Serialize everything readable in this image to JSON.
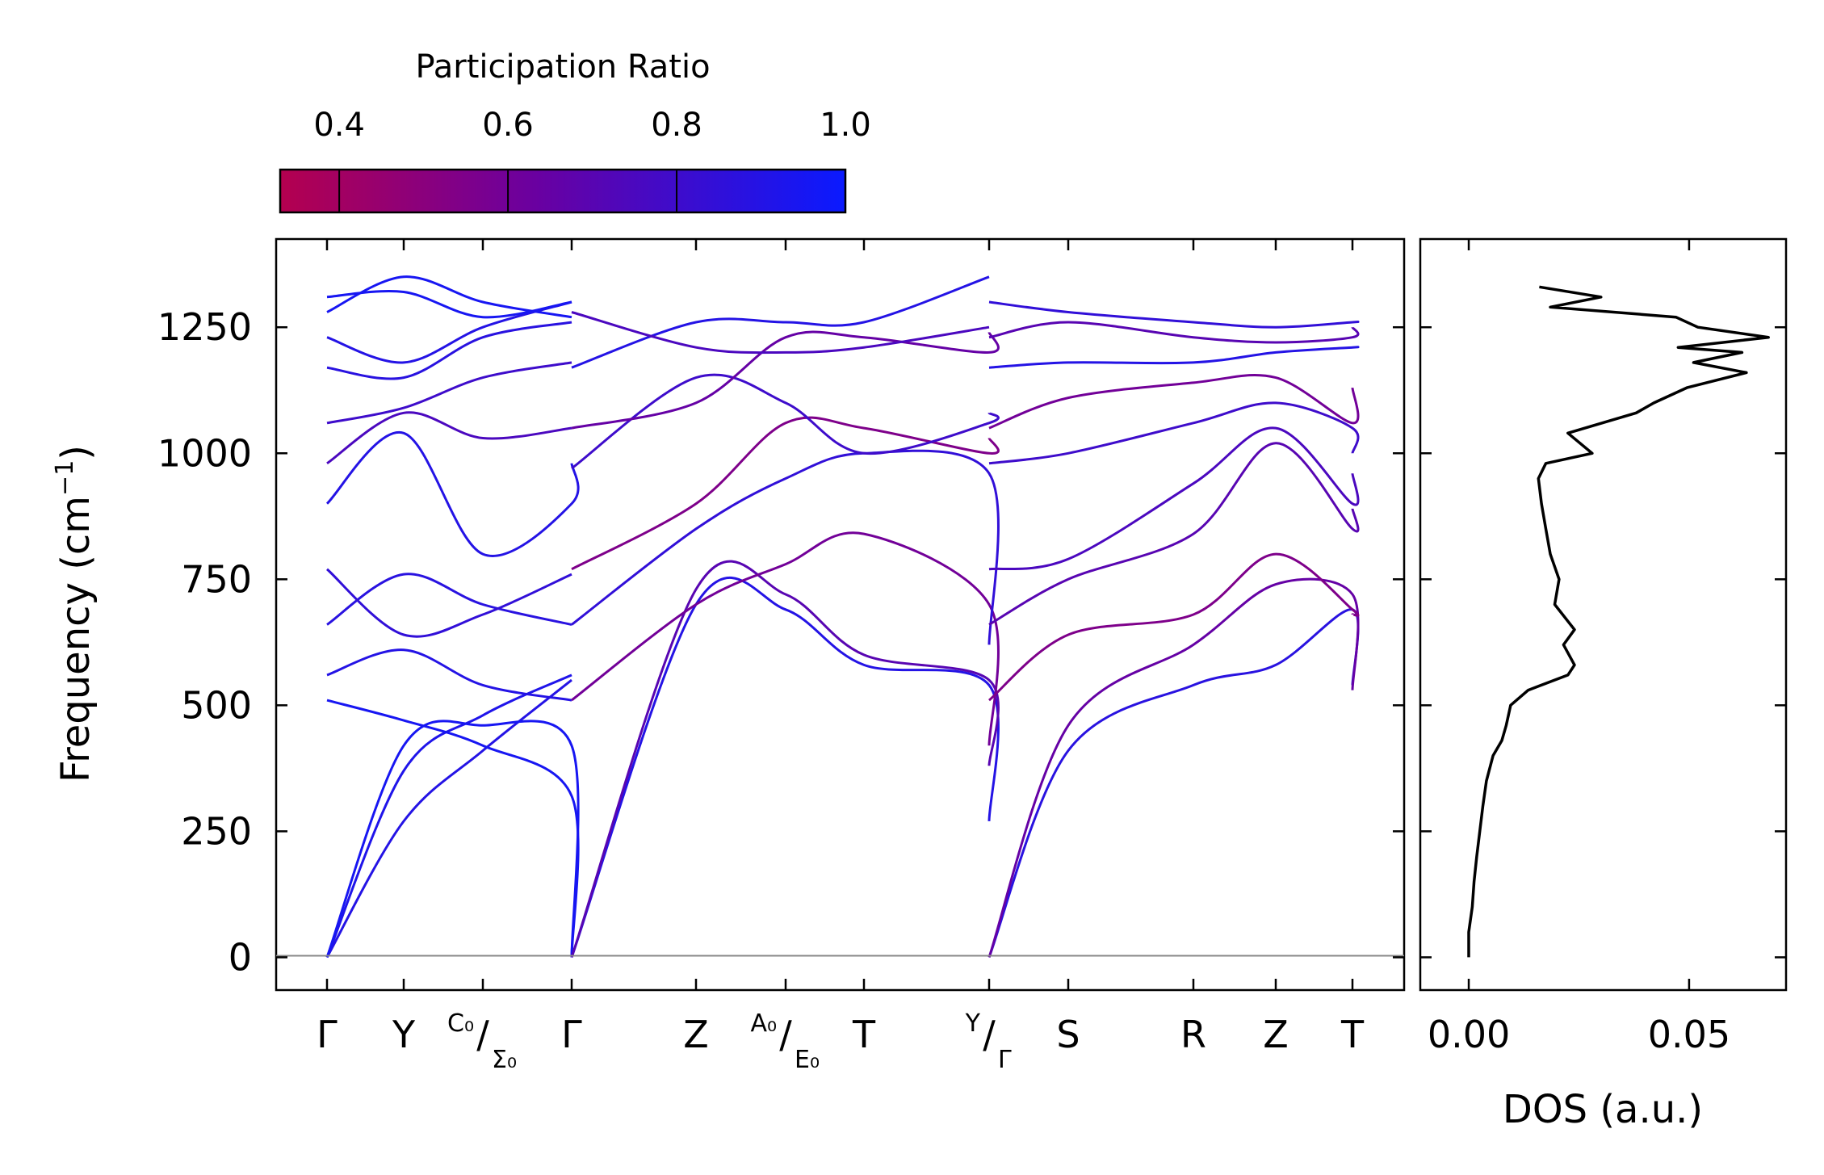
{
  "chart_data": {
    "type": "line",
    "title": "",
    "ylabel": "Frequency (cm⁻¹)",
    "ylabel_text": "Frequency (cm",
    "ylabel_sup": "−1",
    "ylabel_close": ")",
    "ylim": [
      -65,
      1425
    ],
    "yticks": [
      0,
      250,
      500,
      750,
      1000,
      1250
    ],
    "colorbar": {
      "title": "Participation Ratio",
      "range": [
        0.33,
        1.0
      ],
      "ticks": [
        0.4,
        0.6,
        0.8,
        1.0
      ],
      "tick_labels": [
        "0.4",
        "0.6",
        "0.8",
        "1.0"
      ],
      "low_color": "#b4004f",
      "mid_color": "#6a00a0",
      "high_color": "#0a1aff"
    },
    "kpath_labels": [
      {
        "main": "Γ"
      },
      {
        "main": "Y"
      },
      {
        "pre": "C₀",
        "slash": "/",
        "post": "Σ₀"
      },
      {
        "main": "Γ"
      },
      {
        "main": "Z"
      },
      {
        "pre": "A₀",
        "slash": "/",
        "post": "E₀"
      },
      {
        "main": "T"
      },
      {
        "pre": "Y",
        "slash": "/",
        "post": "Γ"
      },
      {
        "main": "S"
      },
      {
        "main": "R"
      },
      {
        "main": "Z"
      },
      {
        "main": "T"
      }
    ],
    "series": [
      {
        "segment": 1,
        "values": [
          0,
          270,
          410,
          550
        ],
        "pr": 0.9
      },
      {
        "segment": 1,
        "values": [
          0,
          370,
          480,
          560
        ],
        "pr": 0.92
      },
      {
        "segment": 1,
        "values": [
          0,
          420,
          460,
          420,
          0
        ],
        "pr": 0.95
      },
      {
        "segment": 1,
        "values": [
          510,
          470,
          420,
          320,
          0
        ],
        "pr": 0.95
      },
      {
        "segment": 1,
        "values": [
          560,
          610,
          540,
          510
        ],
        "pr": 0.9
      },
      {
        "segment": 1,
        "values": [
          660,
          760,
          700,
          660
        ],
        "pr": 0.88
      },
      {
        "segment": 1,
        "values": [
          770,
          640,
          680,
          760
        ],
        "pr": 0.85
      },
      {
        "segment": 1,
        "values": [
          900,
          1040,
          800,
          900,
          980
        ],
        "pr": 0.9
      },
      {
        "segment": 1,
        "values": [
          980,
          1080,
          1030,
          1050
        ],
        "pr": 0.75
      },
      {
        "segment": 1,
        "values": [
          1060,
          1090,
          1150,
          1180
        ],
        "pr": 0.8
      },
      {
        "segment": 1,
        "values": [
          1170,
          1150,
          1230,
          1260
        ],
        "pr": 0.88
      },
      {
        "segment": 1,
        "values": [
          1230,
          1180,
          1250,
          1300
        ],
        "pr": 0.9
      },
      {
        "segment": 1,
        "values": [
          1280,
          1350,
          1300,
          1270
        ],
        "pr": 0.95
      },
      {
        "segment": 1,
        "values": [
          1310,
          1320,
          1270,
          1300
        ],
        "pr": 0.95
      },
      {
        "segment": 2,
        "values": [
          0,
          700,
          690,
          580,
          540,
          270
        ],
        "pr": 0.9
      },
      {
        "segment": 2,
        "values": [
          0,
          730,
          720,
          600,
          550,
          380
        ],
        "pr": 0.7
      },
      {
        "segment": 2,
        "values": [
          510,
          700,
          780,
          840,
          700,
          420
        ],
        "pr": 0.6
      },
      {
        "segment": 2,
        "values": [
          660,
          850,
          950,
          1000,
          960,
          620
        ],
        "pr": 0.85
      },
      {
        "segment": 2,
        "values": [
          770,
          900,
          1060,
          1050,
          1000,
          1030
        ],
        "pr": 0.55
      },
      {
        "segment": 2,
        "values": [
          970,
          1150,
          1100,
          1000,
          1060,
          1080
        ],
        "pr": 0.8
      },
      {
        "segment": 2,
        "values": [
          1050,
          1100,
          1230,
          1230,
          1200,
          1240
        ],
        "pr": 0.65
      },
      {
        "segment": 2,
        "values": [
          1170,
          1260,
          1260,
          1260,
          1350
        ],
        "pr": 0.9
      },
      {
        "segment": 2,
        "values": [
          1280,
          1210,
          1200,
          1210,
          1250
        ],
        "pr": 0.75
      },
      {
        "segment": 3,
        "values": [
          0,
          410,
          540,
          580,
          690,
          540
        ],
        "pr": 0.88
      },
      {
        "segment": 3,
        "values": [
          0,
          460,
          620,
          740,
          720,
          530
        ],
        "pr": 0.65
      },
      {
        "segment": 3,
        "values": [
          510,
          640,
          680,
          800,
          690,
          680
        ],
        "pr": 0.55
      },
      {
        "segment": 3,
        "values": [
          660,
          750,
          840,
          1020,
          850,
          890
        ],
        "pr": 0.7
      },
      {
        "segment": 3,
        "values": [
          770,
          790,
          940,
          1050,
          900,
          960
        ],
        "pr": 0.75
      },
      {
        "segment": 3,
        "values": [
          980,
          1000,
          1060,
          1100,
          1050,
          1000
        ],
        "pr": 0.8
      },
      {
        "segment": 3,
        "values": [
          1050,
          1110,
          1140,
          1150,
          1060,
          1130
        ],
        "pr": 0.6
      },
      {
        "segment": 3,
        "values": [
          1170,
          1180,
          1180,
          1200,
          1210,
          1210
        ],
        "pr": 0.9
      },
      {
        "segment": 3,
        "values": [
          1230,
          1260,
          1230,
          1220,
          1230,
          1250
        ],
        "pr": 0.7
      },
      {
        "segment": 3,
        "values": [
          1300,
          1280,
          1260,
          1250,
          1260,
          1260
        ],
        "pr": 0.85
      }
    ],
    "dos": {
      "xlabel": "DOS (a.u.)",
      "xlim": [
        -0.011,
        0.072
      ],
      "xticks": [
        0.0,
        0.05
      ],
      "xtick_labels": [
        "0.00",
        "0.05"
      ],
      "frequency": [
        0,
        50,
        100,
        150,
        200,
        250,
        300,
        350,
        400,
        430,
        460,
        500,
        530,
        560,
        580,
        620,
        650,
        700,
        750,
        800,
        850,
        900,
        950,
        980,
        1000,
        1040,
        1080,
        1100,
        1130,
        1160,
        1180,
        1200,
        1210,
        1230,
        1250,
        1270,
        1290,
        1310,
        1330
      ],
      "density": [
        0.0,
        0.0,
        0.0008,
        0.0012,
        0.0018,
        0.0025,
        0.0032,
        0.004,
        0.0055,
        0.0075,
        0.0085,
        0.0095,
        0.0135,
        0.0225,
        0.024,
        0.0215,
        0.024,
        0.0195,
        0.0205,
        0.0185,
        0.0175,
        0.0165,
        0.0158,
        0.0175,
        0.028,
        0.0225,
        0.038,
        0.042,
        0.0495,
        0.063,
        0.051,
        0.062,
        0.0475,
        0.068,
        0.052,
        0.047,
        0.0185,
        0.03,
        0.016
      ]
    }
  }
}
